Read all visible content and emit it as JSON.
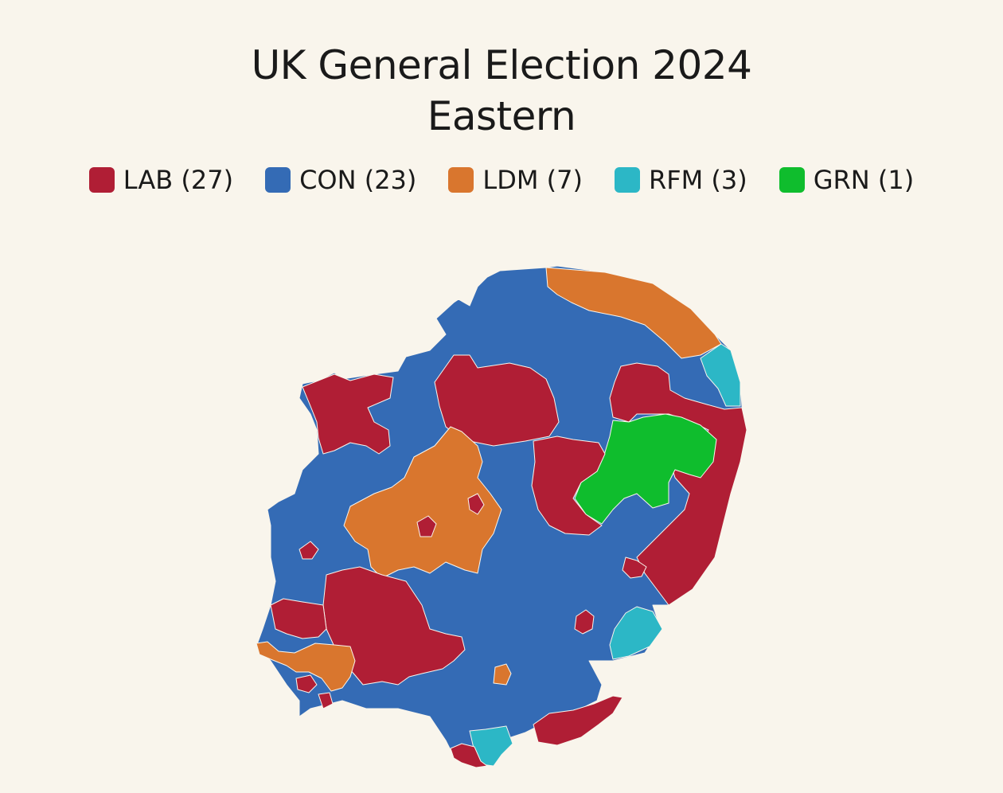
{
  "title": {
    "line1": "UK General Election 2024",
    "line2": "Eastern"
  },
  "parties": {
    "LAB": {
      "color": "#b01e35"
    },
    "CON": {
      "color": "#346bb5"
    },
    "LDM": {
      "color": "#d9762e"
    },
    "RFM": {
      "color": "#2cb7c6"
    },
    "GRN": {
      "color": "#0fbd2d"
    }
  },
  "legend": [
    {
      "party": "LAB",
      "label": "LAB (27)",
      "seats": 27
    },
    {
      "party": "CON",
      "label": "CON (23)",
      "seats": 23
    },
    {
      "party": "LDM",
      "label": "LDM (7)",
      "seats": 7
    },
    {
      "party": "RFM",
      "label": "RFM (3)",
      "seats": 3
    },
    {
      "party": "GRN",
      "label": "GRN (1)",
      "seats": 1
    }
  ]
}
